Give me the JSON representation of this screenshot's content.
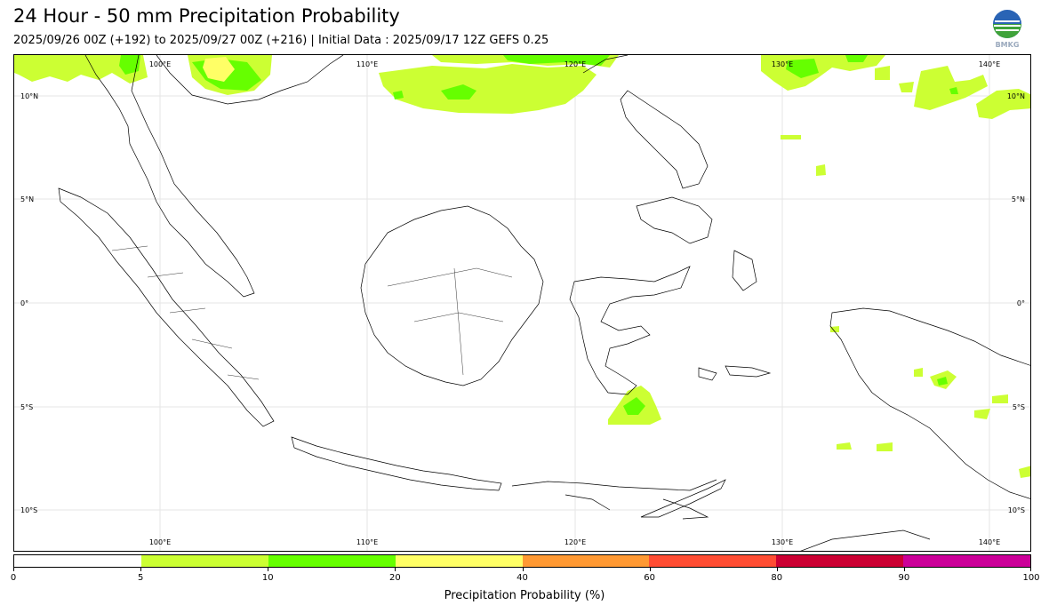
{
  "title": "24 Hour - 50 mm Precipitation Probability",
  "subtitle": "2025/09/26 00Z (+192) to 2025/09/27 00Z (+216) | Initial Data : 2025/09/17 12Z GEFS 0.25",
  "logo": {
    "icon": "bmkg-logo-icon",
    "text": "BMKG"
  },
  "map": {
    "lon_labels": [
      "100°E",
      "110°E",
      "120°E",
      "130°E",
      "140°E"
    ],
    "lat_labels": [
      "10°N",
      "5°N",
      "0°",
      "5°S",
      "10°S"
    ]
  },
  "colorbar": {
    "title": "Precipitation Probability (%)",
    "levels": [
      0,
      5,
      10,
      20,
      40,
      60,
      80,
      90,
      100
    ],
    "tick_labels": [
      "0",
      "5",
      "10",
      "20",
      "40",
      "60",
      "80",
      "90",
      "100"
    ],
    "colors": [
      "#ffffff",
      "#ccff33",
      "#66ff00",
      "#ffff66",
      "#ff9933",
      "#ff4d33",
      "#cc0033",
      "#cc0099"
    ]
  }
}
